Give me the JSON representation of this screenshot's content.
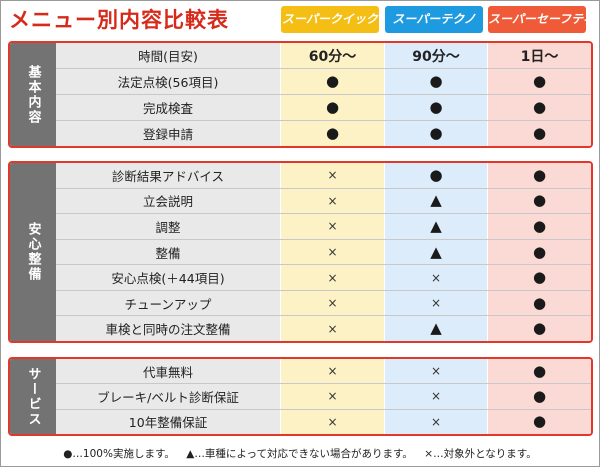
{
  "title": "メニュー別内容比較表",
  "plans": [
    "スーパークイック",
    "スーパーテクノ",
    "スーパーセーフティー"
  ],
  "sections": [
    {
      "label": "基本内容",
      "rows": [
        {
          "item": "時間(目安)",
          "values": [
            "60分～",
            "90分～",
            "1日～"
          ],
          "is_time": true
        },
        {
          "item": "法定点検(56項目)",
          "values": [
            "●",
            "●",
            "●"
          ]
        },
        {
          "item": "完成検査",
          "values": [
            "●",
            "●",
            "●"
          ]
        },
        {
          "item": "登録申請",
          "values": [
            "●",
            "●",
            "●"
          ]
        }
      ]
    },
    {
      "label": "安心整備",
      "rows": [
        {
          "item": "診断結果アドバイス",
          "values": [
            "×",
            "●",
            "●"
          ]
        },
        {
          "item": "立会説明",
          "values": [
            "×",
            "▲",
            "●"
          ]
        },
        {
          "item": "調整",
          "values": [
            "×",
            "▲",
            "●"
          ]
        },
        {
          "item": "整備",
          "values": [
            "×",
            "▲",
            "●"
          ]
        },
        {
          "item": "安心点検(＋44項目)",
          "values": [
            "×",
            "×",
            "●"
          ]
        },
        {
          "item": "チューンアップ",
          "values": [
            "×",
            "×",
            "●"
          ]
        },
        {
          "item": "車検と同時の注文整備",
          "values": [
            "×",
            "▲",
            "●"
          ]
        }
      ]
    },
    {
      "label": "サービス",
      "rows": [
        {
          "item": "代車無料",
          "values": [
            "×",
            "×",
            "●"
          ]
        },
        {
          "item": "ブレーキ/ベルト診断保証",
          "values": [
            "×",
            "×",
            "●"
          ]
        },
        {
          "item": "10年整備保証",
          "values": [
            "×",
            "×",
            "●"
          ]
        }
      ]
    }
  ],
  "legend": [
    "●…100%実施します。",
    "▲…車種によって対応できない場合があります。",
    "×…対象外となります。"
  ],
  "colors": {
    "title": "#d62a1b",
    "quick": "#f4be14",
    "techno": "#1e9ae0",
    "safety": "#ef5a39",
    "section_border": "#e0392b",
    "section_label_bg": "#737373"
  }
}
